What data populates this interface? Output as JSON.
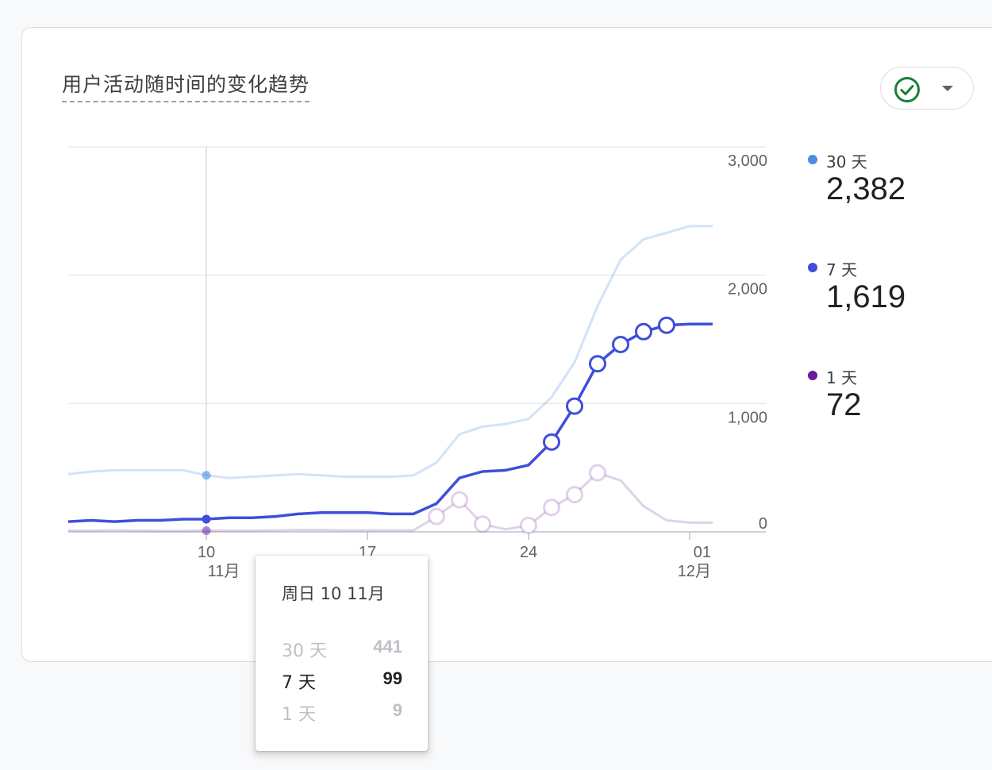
{
  "card": {
    "title": "用户活动随时间的变化趋势"
  },
  "status_chip": {
    "icon": "check-circle-icon",
    "dropdown_icon": "caret-down-icon",
    "accent": "#188038"
  },
  "colors": {
    "d30": "#4a8fe0",
    "d7": "#3f4fd9",
    "d1": "#6a1b9a"
  },
  "legend": [
    {
      "name": "30 天",
      "value": "2,382",
      "color": "#4a8fe0"
    },
    {
      "name": "7 天",
      "value": "1,619",
      "color": "#3f4fd9"
    },
    {
      "name": "1 天",
      "value": "72",
      "color": "#6a1b9a"
    }
  ],
  "tooltip": {
    "title": "周日 10 11月",
    "rows": [
      {
        "name": "30 天",
        "value": "441"
      },
      {
        "name": "7 天",
        "value": "99"
      },
      {
        "name": "1 天",
        "value": "9"
      }
    ]
  },
  "chart_data": {
    "type": "line",
    "title": "用户活动随时间的变化趋势",
    "x": [
      "11-04",
      "11-05",
      "11-06",
      "11-07",
      "11-08",
      "11-09",
      "11-10",
      "11-11",
      "11-12",
      "11-13",
      "11-14",
      "11-15",
      "11-16",
      "11-17",
      "11-18",
      "11-19",
      "11-20",
      "11-21",
      "11-22",
      "11-23",
      "11-24",
      "11-25",
      "11-26",
      "11-27",
      "11-28",
      "11-29",
      "11-30",
      "12-01",
      "12-02"
    ],
    "x_tick_labels": [
      {
        "x": "11-10",
        "day": "10",
        "month": "11月"
      },
      {
        "x": "11-17",
        "day": "17",
        "month": ""
      },
      {
        "x": "11-24",
        "day": "24",
        "month": ""
      },
      {
        "x": "12-01",
        "day": "01",
        "month": "12月"
      }
    ],
    "y_ticks": [
      "3,000",
      "2,000",
      "1,000",
      "0"
    ],
    "ylim": [
      0,
      3000
    ],
    "y_axis_position": "right",
    "grid": true,
    "legend_position": "right",
    "highlight_x": "11-10",
    "series": [
      {
        "name": "30 天",
        "values": [
          450,
          470,
          480,
          480,
          480,
          480,
          441,
          420,
          430,
          440,
          450,
          440,
          430,
          430,
          430,
          440,
          540,
          760,
          820,
          840,
          880,
          1050,
          1320,
          1760,
          2120,
          2280,
          2330,
          2382,
          2382
        ]
      },
      {
        "name": "7 天",
        "values": [
          80,
          90,
          80,
          90,
          90,
          99,
          99,
          110,
          110,
          120,
          140,
          150,
          150,
          150,
          140,
          140,
          220,
          420,
          470,
          480,
          520,
          700,
          980,
          1310,
          1460,
          1560,
          1610,
          1619,
          1619
        ]
      },
      {
        "name": "1 天",
        "values": [
          10,
          10,
          12,
          10,
          8,
          8,
          9,
          10,
          10,
          12,
          15,
          15,
          12,
          12,
          12,
          12,
          120,
          250,
          60,
          20,
          50,
          190,
          290,
          460,
          400,
          200,
          90,
          72,
          72
        ]
      }
    ]
  }
}
